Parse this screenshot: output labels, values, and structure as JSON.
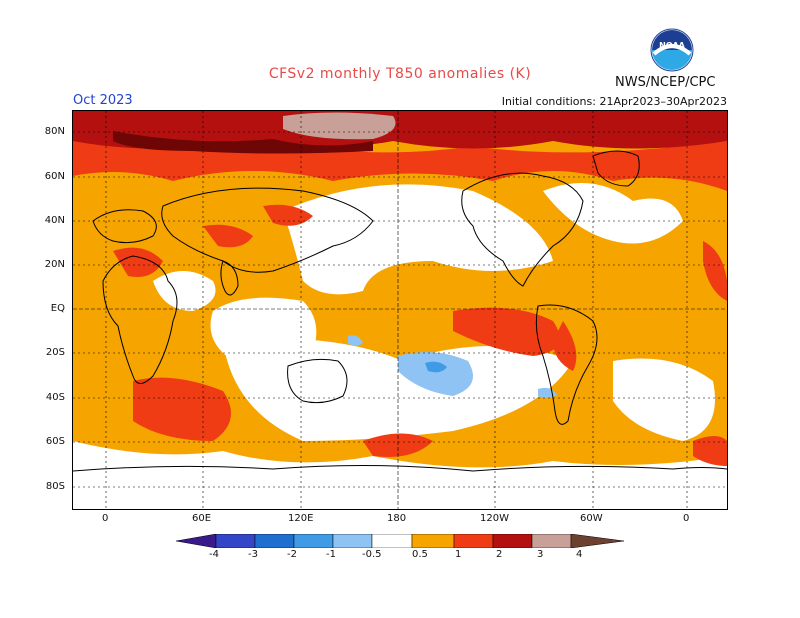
{
  "header": {
    "title": "CFSv2 monthly T850 anomalies (K)",
    "agency": "NWS/NCEP/CPC",
    "month": "Oct 2023",
    "initial_conditions": "Initial conditions: 21Apr2023–30Apr2023",
    "logo_text": "NOAA"
  },
  "axes": {
    "lat_labels": [
      "80N",
      "60N",
      "40N",
      "20N",
      "EQ",
      "20S",
      "40S",
      "60S",
      "80S"
    ],
    "lon_labels": [
      "0",
      "60E",
      "120E",
      "180",
      "120W",
      "60W",
      "0"
    ]
  },
  "colorbar": {
    "ticks": [
      "-4",
      "-3",
      "-2",
      "-1",
      "-0.5",
      "0.5",
      "1",
      "2",
      "3",
      "4"
    ],
    "colors": {
      "lt_-4": "#3a1a8a",
      "-4_-3": "#3346c8",
      "-3_-2": "#1f6fd1",
      "-2_-1": "#3f9be6",
      "-1_-0.5": "#8ec3f3",
      "-0.5_0.5": "#ffffff",
      "0.5_1": "#f5a400",
      "1_2": "#f03c14",
      "2_3": "#b41010",
      "3_4": "#6e0606",
      "gt_4": "#c8a098"
    }
  }
}
